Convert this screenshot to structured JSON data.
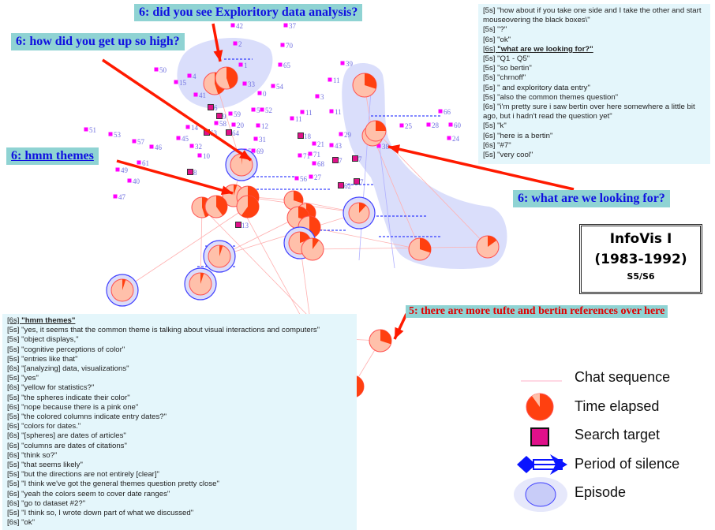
{
  "annotations": {
    "exploratory": "6: did you see Exploritory data analysis?",
    "high": "6: how did you get up so high?",
    "themes": "6: hmm themes",
    "looking": "6: what are we looking for?",
    "tufte": "5: there are more tufte and bertin references over here"
  },
  "info_box": {
    "title": "InfoVis I",
    "years": "(1983-1992)",
    "sessions": "S5/S6"
  },
  "chat_top": [
    {
      "ts": "[5s]",
      "text": "\"how about if you take one side and I take the other and start mouseovering the black boxes\\\"",
      "highlight": false
    },
    {
      "ts": "[5s]",
      "text": "\"?\"",
      "highlight": false
    },
    {
      "ts": "[6s]",
      "text": "\"ok\"",
      "highlight": false
    },
    {
      "ts": "[6s]",
      "text": "\"what are we looking for?\"",
      "highlight": true
    },
    {
      "ts": "[5s]",
      "text": "\"Q1 - Q5\"",
      "highlight": false
    },
    {
      "ts": "[5s]",
      "text": "\"so bertin\"",
      "highlight": false
    },
    {
      "ts": "[5s]",
      "text": "\"chrnoff\"",
      "highlight": false
    },
    {
      "ts": "[5s]",
      "text": "\" and exploritory data entry\"",
      "highlight": false
    },
    {
      "ts": "[5s]",
      "text": "\"also the common themes question\"",
      "highlight": false
    },
    {
      "ts": "[6s]",
      "text": "\"i'm pretty sure i saw bertin over here somewhere a little bit ago, but i hadn't read the question yet\"",
      "highlight": false
    },
    {
      "ts": "[5s]",
      "text": "\"k\"",
      "highlight": false
    },
    {
      "ts": "[6s]",
      "text": "\"here is a bertin\"",
      "highlight": false
    },
    {
      "ts": "[6s]",
      "text": "\"#7\"",
      "highlight": false
    },
    {
      "ts": "[5s]",
      "text": "\"very cool\"",
      "highlight": false
    }
  ],
  "chat_bottom": [
    {
      "ts": "[6s]",
      "text": "\"hmm themes\"",
      "highlight": true
    },
    {
      "ts": "[5s]",
      "text": "\"yes, it seems that the common theme is talking about visual interactions and computers\"",
      "highlight": false
    },
    {
      "ts": "[5s]",
      "text": "\"object displays,\"",
      "highlight": false
    },
    {
      "ts": "[5s]",
      "text": "\"cognitive perceptions of color\"",
      "highlight": false
    },
    {
      "ts": "[5s]",
      "text": "\"entries like that\"",
      "highlight": false
    },
    {
      "ts": "[6s]",
      "text": "\"[analyzing] data, visualizations\"",
      "highlight": false
    },
    {
      "ts": "[5s]",
      "text": "\"yes\"",
      "highlight": false
    },
    {
      "ts": "[6s]",
      "text": "\"yellow for statistics?\"",
      "highlight": false
    },
    {
      "ts": "[5s]",
      "text": "\"the spheres indicate their color\"",
      "highlight": false
    },
    {
      "ts": "[6s]",
      "text": "\"nope because there is a pink one\"",
      "highlight": false
    },
    {
      "ts": "[5s]",
      "text": "\"the colored columns indicate entry dates?\"",
      "highlight": false
    },
    {
      "ts": "[6s]",
      "text": "\"colors for dates.\"",
      "highlight": false
    },
    {
      "ts": "[6s]",
      "text": "\"[spheres] are dates of articles\"",
      "highlight": false
    },
    {
      "ts": "[6s]",
      "text": "\"columns are dates of citations\"",
      "highlight": false
    },
    {
      "ts": "[6s]",
      "text": "\"think so?\"",
      "highlight": false
    },
    {
      "ts": "[5s]",
      "text": "\"that seems likely\"",
      "highlight": false
    },
    {
      "ts": "[5s]",
      "text": "\"but the directions are not entirely [clear]\"",
      "highlight": false
    },
    {
      "ts": "[5s]",
      "text": "\"I think we've got the general themes question pretty close\"",
      "highlight": false
    },
    {
      "ts": "[6s]",
      "text": "\"yeah the colors seem to cover date ranges\"",
      "highlight": false
    },
    {
      "ts": "[6s]",
      "text": "\"go to dataset #2?\"",
      "highlight": false
    },
    {
      "ts": "[5s]",
      "text": "\"I think so, I wrote down part of what we discussed\"",
      "highlight": false
    },
    {
      "ts": "[6s]",
      "text": "\"ok\"",
      "highlight": false
    }
  ],
  "legend": {
    "chat_sequence": "Chat sequence",
    "time_elapsed": "Time elapsed",
    "search_target": "Search target",
    "period_of_silence": "Period of silence",
    "episode": "Episode"
  },
  "node_labels": [
    "42",
    "37",
    "2",
    "70",
    "50",
    "1",
    "65",
    "4",
    "15",
    "33",
    "54",
    "41",
    "0",
    "6",
    "5",
    "52",
    "59",
    "9",
    "58",
    "20",
    "12",
    "11",
    "11",
    "14",
    "51",
    "53",
    "63",
    "64",
    "45",
    "57",
    "31",
    "18",
    "46",
    "32",
    "10",
    "55",
    "69",
    "39",
    "11",
    "3",
    "29",
    "21",
    "43",
    "71",
    "71",
    "68",
    "27",
    "56",
    "7",
    "7",
    "62",
    "7",
    "66",
    "25",
    "28",
    "60",
    "24",
    "61",
    "8",
    "49",
    "40",
    "47",
    "13",
    "11",
    "6",
    "38"
  ],
  "node_is_target": [
    false,
    false,
    false,
    false,
    false,
    false,
    false,
    false,
    false,
    false,
    false,
    false,
    false,
    true,
    false,
    false,
    false,
    true,
    false,
    false,
    false,
    false,
    false,
    false,
    false,
    false,
    true,
    true,
    false,
    false,
    false,
    true,
    false,
    false,
    false,
    false,
    false,
    false,
    false,
    false,
    false,
    false,
    false,
    false,
    false,
    false,
    false,
    false,
    true,
    true,
    true,
    true,
    false,
    false,
    false,
    false,
    false,
    false,
    true,
    false,
    false,
    false,
    true,
    false,
    false,
    false
  ],
  "time_elapsed_fractions": [
    0.45,
    0.45,
    0.3,
    0.3,
    0.25,
    0.02,
    0.05,
    0.3,
    0.6,
    0.45,
    0.4,
    0.3,
    0.5,
    0.3,
    0.5,
    0.2,
    0.1,
    0.12,
    0.05,
    0.05,
    0.05,
    0.3,
    0.15,
    0.1,
    0.3,
    0.55,
    0.6,
    0.02,
    0,
    0
  ],
  "colors": {
    "pie_light": "#ffc0aa",
    "pie_dark": "#ff4010",
    "target": "#e0108a",
    "node": "#ff00ff",
    "label": "#7070e0",
    "episode": "#d4d8fa",
    "silence": "#0a14ff",
    "arrow": "#ff1a00",
    "annotation_bg": "#8fd3d3"
  }
}
